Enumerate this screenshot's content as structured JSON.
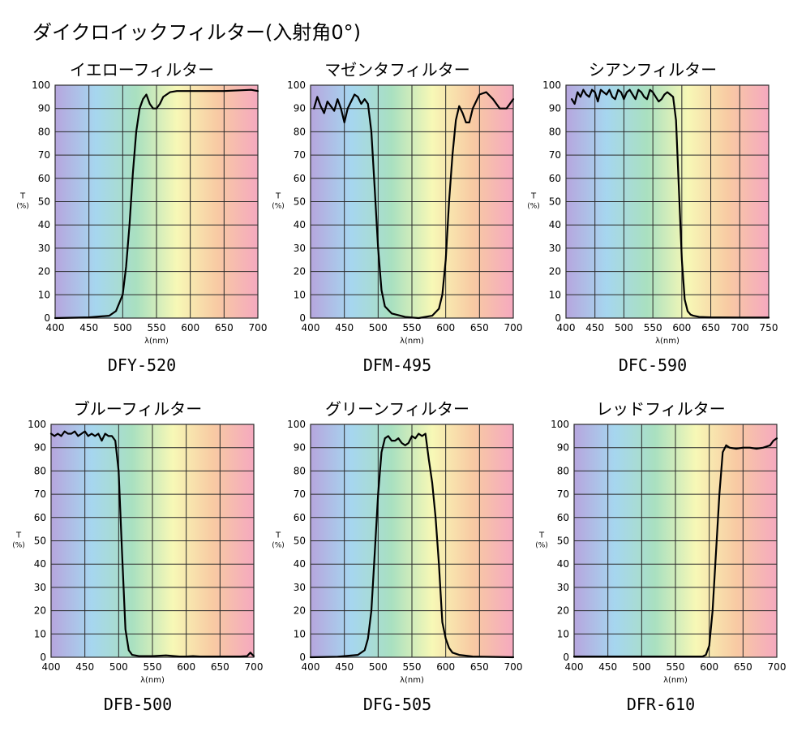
{
  "page": {
    "title": "ダイクロイックフィルター(入射角0°)"
  },
  "colors": {
    "bands": [
      "#b6a6de",
      "#a6d6ef",
      "#a9e0c0",
      "#f7f8b6",
      "#f8caa3",
      "#f5a9bf"
    ],
    "grid": "#2a2a2a",
    "curve": "#000000"
  },
  "chart_data": [
    {
      "type": "line",
      "title": "イエローフィルター",
      "code": "DFY-520",
      "xlabel": "λ(nm)",
      "ylabel": "T",
      "ylabel_unit": "(%)",
      "xlim": [
        400,
        700
      ],
      "ylim": [
        0,
        100
      ],
      "xticks": [
        400,
        450,
        500,
        550,
        600,
        650,
        700
      ],
      "yticks": [
        0,
        10,
        20,
        30,
        40,
        50,
        60,
        70,
        80,
        90,
        100
      ],
      "grid": true,
      "series": [
        {
          "x": [
            400,
            450,
            480,
            490,
            500,
            505,
            510,
            515,
            520,
            525,
            530,
            535,
            540,
            545,
            550,
            555,
            560,
            570,
            580,
            590,
            600,
            650,
            690,
            700
          ],
          "y": [
            0,
            0.3,
            1,
            3,
            10,
            22,
            40,
            62,
            80,
            90,
            94,
            96,
            92,
            90,
            90,
            92,
            95,
            97,
            97.5,
            97.5,
            97.5,
            97.5,
            98,
            97.5
          ]
        }
      ]
    },
    {
      "type": "line",
      "title": "マゼンタフィルター",
      "code": "DFM-495",
      "xlabel": "λ(nm)",
      "ylabel": "T",
      "ylabel_unit": "(%)",
      "xlim": [
        400,
        700
      ],
      "ylim": [
        0,
        100
      ],
      "xticks": [
        400,
        450,
        500,
        550,
        600,
        650,
        700
      ],
      "yticks": [
        0,
        10,
        20,
        30,
        40,
        50,
        60,
        70,
        80,
        90,
        100
      ],
      "grid": true,
      "series": [
        {
          "x": [
            405,
            410,
            415,
            420,
            425,
            430,
            435,
            440,
            445,
            450,
            455,
            460,
            465,
            470,
            475,
            480,
            485,
            490,
            495,
            500,
            505,
            510,
            520,
            540,
            560,
            580,
            590,
            595,
            600,
            605,
            610,
            615,
            620,
            625,
            630,
            635,
            640,
            650,
            660,
            670,
            680,
            690,
            700
          ],
          "y": [
            90,
            95,
            91,
            88,
            93,
            91,
            89,
            94,
            90,
            84,
            90,
            93,
            96,
            95,
            92,
            94,
            92,
            80,
            55,
            30,
            12,
            5,
            2,
            0.5,
            0,
            1,
            4,
            10,
            25,
            50,
            70,
            85,
            91,
            88,
            84,
            84,
            90,
            96,
            97,
            94,
            90,
            90,
            94
          ]
        }
      ]
    },
    {
      "type": "line",
      "title": "シアンフィルター",
      "code": "DFC-590",
      "xlabel": "λ(nm)",
      "ylabel": "T",
      "ylabel_unit": "(%)",
      "xlim": [
        400,
        750
      ],
      "ylim": [
        0,
        100
      ],
      "xticks": [
        400,
        450,
        500,
        550,
        600,
        650,
        700,
        750
      ],
      "yticks": [
        0,
        10,
        20,
        30,
        40,
        50,
        60,
        70,
        80,
        90,
        100
      ],
      "grid": true,
      "series": [
        {
          "x": [
            410,
            415,
            420,
            425,
            430,
            435,
            440,
            445,
            450,
            455,
            460,
            465,
            470,
            475,
            480,
            485,
            490,
            495,
            500,
            505,
            510,
            515,
            520,
            525,
            530,
            535,
            540,
            545,
            550,
            555,
            560,
            565,
            570,
            575,
            580,
            585,
            590,
            595,
            600,
            605,
            610,
            615,
            620,
            630,
            650,
            700,
            750
          ],
          "y": [
            94,
            92,
            97,
            95,
            98,
            96,
            95,
            98,
            97,
            93,
            98,
            97,
            96,
            98,
            95,
            94,
            98,
            97,
            94,
            97,
            98,
            96,
            94,
            98,
            97,
            95,
            94,
            98,
            97,
            95,
            93,
            94,
            96,
            97,
            96,
            95,
            85,
            55,
            25,
            8,
            3,
            1.5,
            1,
            0.5,
            0.3,
            0.2,
            0.2
          ]
        }
      ]
    },
    {
      "type": "line",
      "title": "ブルーフィルター",
      "code": "DFB-500",
      "xlabel": "λ(nm)",
      "ylabel": "T",
      "ylabel_unit": "(%)",
      "xlim": [
        400,
        700
      ],
      "ylim": [
        0,
        100
      ],
      "xticks": [
        400,
        450,
        500,
        550,
        600,
        650,
        700
      ],
      "yticks": [
        0,
        10,
        20,
        30,
        40,
        50,
        60,
        70,
        80,
        90,
        100
      ],
      "grid": true,
      "series": [
        {
          "x": [
            400,
            405,
            410,
            415,
            420,
            425,
            430,
            435,
            440,
            445,
            450,
            455,
            460,
            465,
            470,
            475,
            480,
            485,
            490,
            495,
            500,
            505,
            510,
            515,
            520,
            530,
            550,
            570,
            590,
            600,
            610,
            620,
            650,
            680,
            690,
            695,
            700
          ],
          "y": [
            96,
            95,
            96,
            95,
            97,
            96,
            96,
            97,
            95,
            96,
            97,
            95,
            96,
            95,
            96,
            93,
            96,
            95,
            95,
            93,
            80,
            45,
            12,
            3,
            1,
            0.5,
            0.5,
            0.8,
            0.3,
            0.3,
            0.5,
            0.3,
            0.3,
            0.3,
            0.5,
            2,
            0.5
          ]
        }
      ]
    },
    {
      "type": "line",
      "title": "グリーンフィルター",
      "code": "DFG-505",
      "xlabel": "λ(nm)",
      "ylabel": "T",
      "ylabel_unit": "(%)",
      "xlim": [
        400,
        700
      ],
      "ylim": [
        0,
        100
      ],
      "xticks": [
        400,
        450,
        500,
        550,
        600,
        650,
        700
      ],
      "yticks": [
        0,
        10,
        20,
        30,
        40,
        50,
        60,
        70,
        80,
        90,
        100
      ],
      "grid": true,
      "series": [
        {
          "x": [
            400,
            440,
            470,
            480,
            485,
            490,
            495,
            500,
            505,
            510,
            515,
            520,
            525,
            530,
            535,
            540,
            545,
            550,
            555,
            560,
            565,
            570,
            575,
            580,
            585,
            590,
            595,
            600,
            605,
            610,
            620,
            640,
            700
          ],
          "y": [
            0,
            0.2,
            1,
            3,
            8,
            20,
            45,
            70,
            88,
            94,
            95,
            93,
            93,
            94,
            92,
            91,
            92,
            95,
            94,
            96,
            95,
            96,
            85,
            75,
            60,
            40,
            15,
            8,
            4,
            2,
            1,
            0.3,
            0
          ]
        }
      ]
    },
    {
      "type": "line",
      "title": "レッドフィルター",
      "code": "DFR-610",
      "xlabel": "λ(nm)",
      "ylabel": "T",
      "ylabel_unit": "(%)",
      "xlim": [
        400,
        700
      ],
      "ylim": [
        0,
        100
      ],
      "xticks": [
        400,
        450,
        500,
        550,
        600,
        650,
        700
      ],
      "yticks": [
        0,
        10,
        20,
        30,
        40,
        50,
        60,
        70,
        80,
        90,
        100
      ],
      "grid": true,
      "series": [
        {
          "x": [
            400,
            580,
            590,
            595,
            600,
            605,
            610,
            615,
            620,
            625,
            630,
            640,
            650,
            660,
            670,
            680,
            690,
            695,
            700
          ],
          "y": [
            0.3,
            0.3,
            0.3,
            1,
            5,
            20,
            45,
            70,
            88,
            91,
            90,
            89.5,
            90,
            90,
            89.5,
            90,
            91,
            93,
            94
          ]
        }
      ]
    }
  ]
}
